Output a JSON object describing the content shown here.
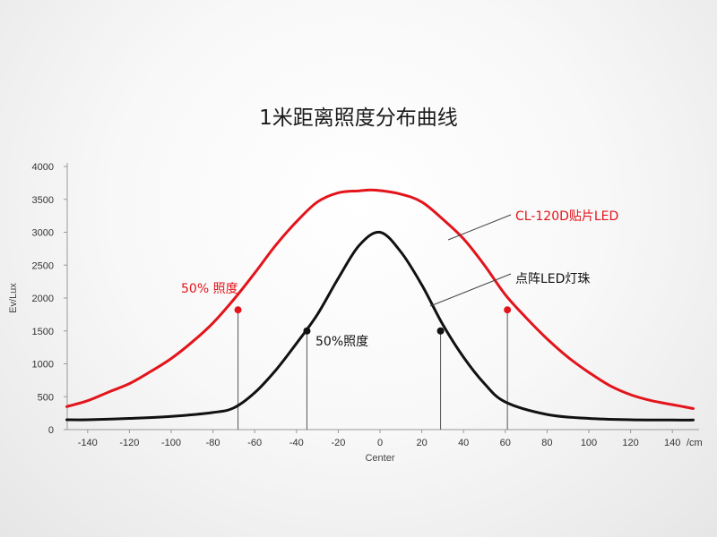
{
  "title": "1米距离照度分布曲线",
  "colors": {
    "red": "#e3141b",
    "black": "#111111"
  },
  "chart_data": {
    "type": "line",
    "xlabel": "Center",
    "x_unit_label": "/cm",
    "ylabel": "Ev/Lux",
    "xlim": [
      -150,
      150
    ],
    "ylim": [
      0,
      4000
    ],
    "x_ticks": [
      -140,
      -120,
      -100,
      -80,
      -60,
      -40,
      -20,
      0,
      20,
      40,
      60,
      80,
      100,
      120,
      140
    ],
    "y_ticks": [
      0,
      500,
      1000,
      1500,
      2000,
      2500,
      3000,
      3500,
      4000
    ],
    "grid": false,
    "series": [
      {
        "name": "CL-120D贴片LED",
        "color": "#e3141b",
        "x": [
          -150,
          -140,
          -130,
          -120,
          -110,
          -100,
          -90,
          -80,
          -70,
          -60,
          -50,
          -40,
          -30,
          -20,
          -10,
          -2,
          10,
          20,
          30,
          40,
          50,
          60,
          70,
          80,
          90,
          100,
          110,
          120,
          130,
          140,
          150
        ],
        "y": [
          350,
          440,
          570,
          700,
          880,
          1080,
          1330,
          1620,
          1980,
          2380,
          2800,
          3160,
          3460,
          3600,
          3630,
          3640,
          3580,
          3460,
          3200,
          2900,
          2500,
          2050,
          1700,
          1380,
          1100,
          870,
          670,
          530,
          440,
          380,
          320
        ]
      },
      {
        "name": "点阵LED灯珠",
        "color": "#111111",
        "x": [
          -150,
          -140,
          -120,
          -100,
          -80,
          -70,
          -60,
          -50,
          -40,
          -30,
          -20,
          -10,
          0,
          10,
          20,
          30,
          40,
          50,
          60,
          80,
          100,
          120,
          140,
          150
        ],
        "y": [
          150,
          150,
          170,
          200,
          260,
          330,
          560,
          900,
          1310,
          1750,
          2300,
          2800,
          3000,
          2700,
          2200,
          1600,
          1100,
          700,
          420,
          230,
          170,
          150,
          145,
          145
        ]
      }
    ],
    "annotations": [
      {
        "label": "50% 照度",
        "series": 0,
        "x": [
          -68,
          61
        ],
        "y": 1820,
        "color": "#e3141b"
      },
      {
        "label": "50%照度",
        "series": 1,
        "x": [
          -35,
          29
        ],
        "y": 1500,
        "color": "#111111"
      }
    ]
  }
}
